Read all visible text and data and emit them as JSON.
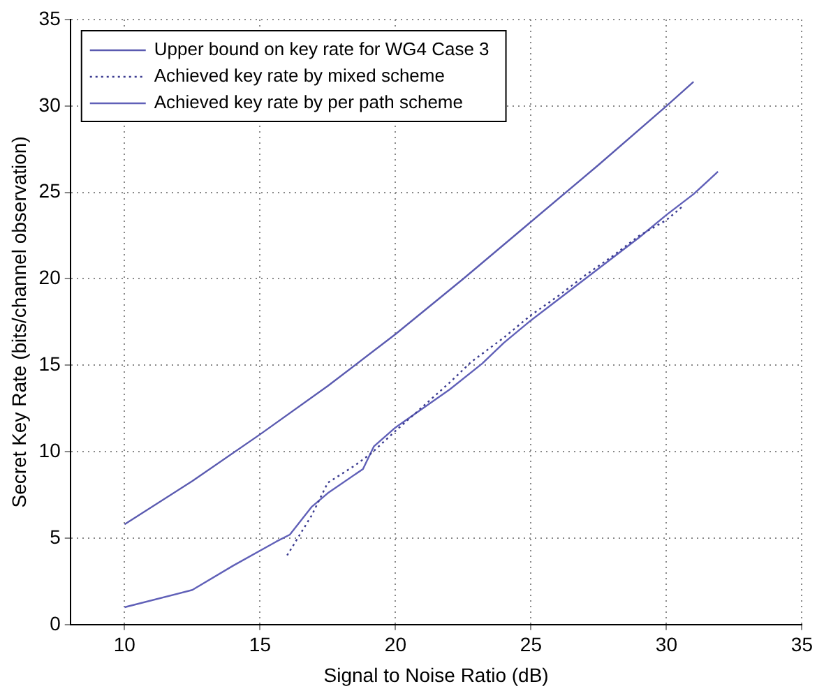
{
  "chart_data": {
    "type": "line",
    "xlabel": "Signal to Noise Ratio (dB)",
    "ylabel": "Secret Key Rate (bits/channel observation)",
    "xlim": [
      8,
      35
    ],
    "xticks": [
      10,
      15,
      20,
      25,
      30,
      35
    ],
    "ylim": [
      0,
      35
    ],
    "yticks": [
      0,
      5,
      10,
      15,
      20,
      25,
      30,
      35
    ],
    "grid": true,
    "legend": "top left",
    "marker": "none",
    "series": [
      {
        "name": "Upper bound on key rate for WG4 Case 3",
        "color": "#5a5ab0",
        "line_style": "solid",
        "x": [
          10,
          12.5,
          15,
          17.5,
          20,
          22.5,
          25,
          27.5,
          30,
          31
        ],
        "values": [
          5.8,
          8.3,
          11,
          13.8,
          16.8,
          20,
          23.3,
          26.6,
          30,
          31.4
        ]
      },
      {
        "name": "Achieved key rate by mixed scheme",
        "color": "#3a3a90",
        "line_style": "dotted",
        "x": [
          16,
          16.9,
          17.5,
          18.5,
          19.1,
          20,
          21,
          22,
          22.8,
          24,
          25,
          26,
          27,
          28,
          29,
          30,
          30.6
        ],
        "values": [
          4,
          6.3,
          8.2,
          9.2,
          9.9,
          11.2,
          12.6,
          14,
          15.2,
          16.6,
          17.9,
          19,
          20.2,
          21.3,
          22.5,
          23.4,
          24.2
        ]
      },
      {
        "name": "Achieved key rate by per path scheme",
        "color": "#6060b8",
        "line_style": "solid",
        "x": [
          10,
          12.5,
          14,
          15.6,
          16.1,
          16.9,
          17.5,
          18.8,
          19.2,
          20,
          21,
          22,
          23.2,
          24,
          25,
          26,
          27,
          28,
          29,
          30,
          31,
          31.9
        ],
        "values": [
          1,
          2,
          3.4,
          4.8,
          5.2,
          6.8,
          7.6,
          9,
          10.3,
          11.4,
          12.5,
          13.6,
          15.1,
          16.3,
          17.6,
          18.8,
          20,
          21.2,
          22.4,
          23.7,
          24.9,
          26.2
        ]
      }
    ]
  }
}
